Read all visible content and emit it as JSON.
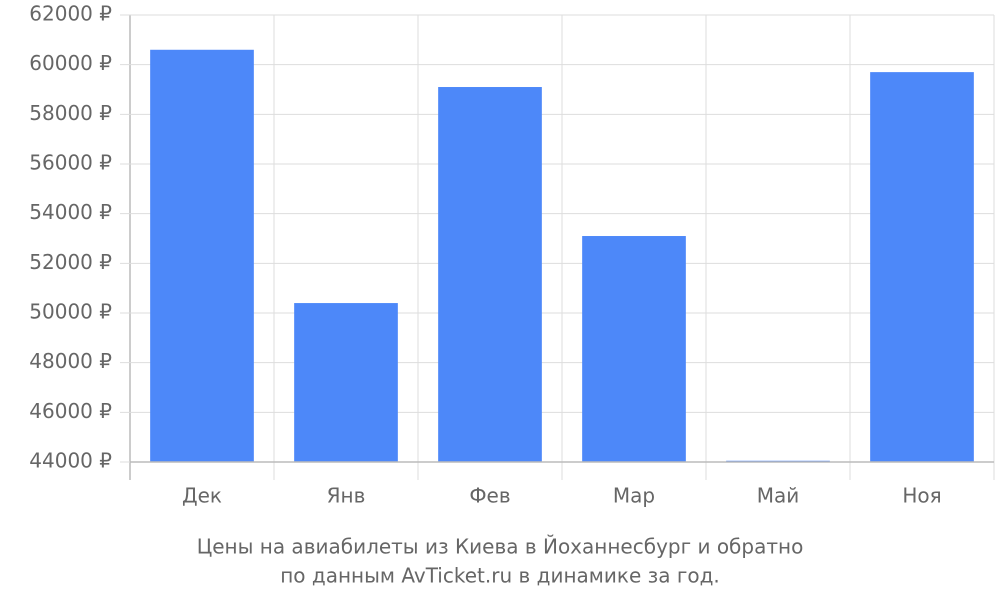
{
  "chart_data": {
    "type": "bar",
    "title_lines": [
      "Цены на авиабилеты из Киева в Йоханнесбург и обратно",
      "по данным AvTicket.ru в динамике за год."
    ],
    "categories": [
      "Дек",
      "Янв",
      "Фев",
      "Мар",
      "Май",
      "Ноя"
    ],
    "values": [
      60600,
      50400,
      59100,
      53100,
      44050,
      59700
    ],
    "color": "#4d88f9",
    "ylim": [
      44000,
      62000
    ],
    "yticks": [
      {
        "value": 44000,
        "label": "44000 ₽"
      },
      {
        "value": 46000,
        "label": "46000 ₽"
      },
      {
        "value": 48000,
        "label": "48000 ₽"
      },
      {
        "value": 50000,
        "label": "50000 ₽"
      },
      {
        "value": 52000,
        "label": "52000 ₽"
      },
      {
        "value": 54000,
        "label": "54000 ₽"
      },
      {
        "value": 56000,
        "label": "56000 ₽"
      },
      {
        "value": 58000,
        "label": "58000 ₽"
      },
      {
        "value": 60000,
        "label": "60000 ₽"
      },
      {
        "value": 62000,
        "label": "62000 ₽"
      }
    ],
    "grid": true
  }
}
